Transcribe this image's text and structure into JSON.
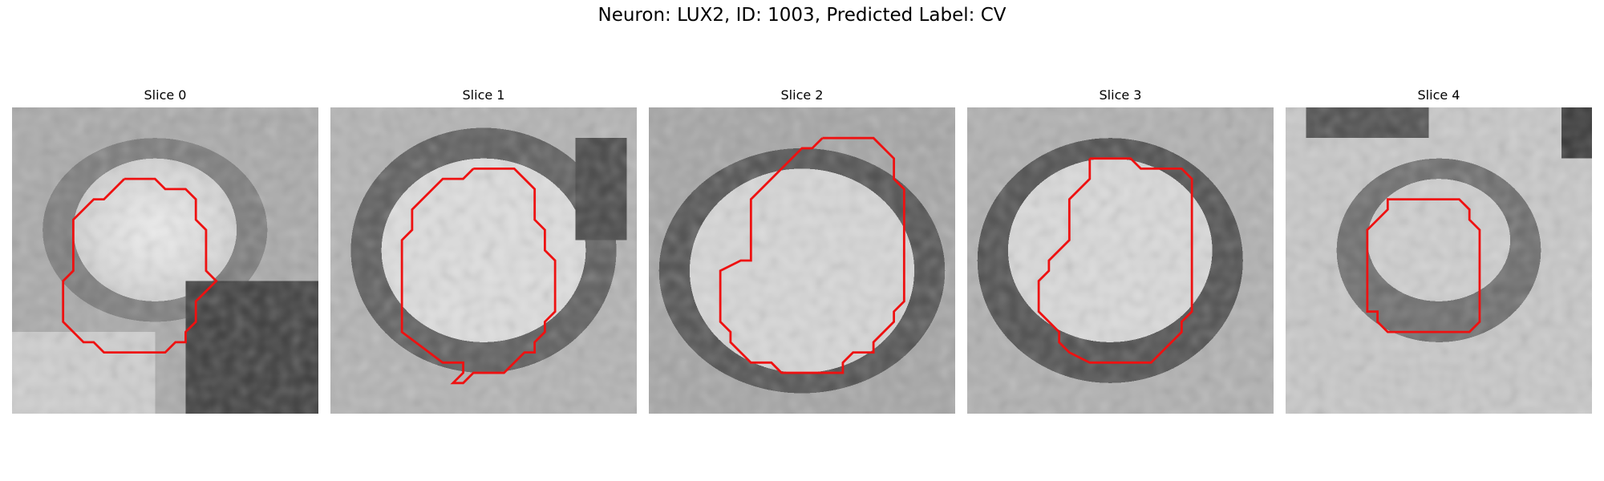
{
  "figure": {
    "title": "Neuron: LUX2, ID: 1003, Predicted Label: CV"
  },
  "colors": {
    "contour": "#ee1111"
  },
  "panels": [
    {
      "title": "Slice 0"
    },
    {
      "title": "Slice 1"
    },
    {
      "title": "Slice 2"
    },
    {
      "title": "Slice 3"
    },
    {
      "title": "Slice 4"
    }
  ]
}
